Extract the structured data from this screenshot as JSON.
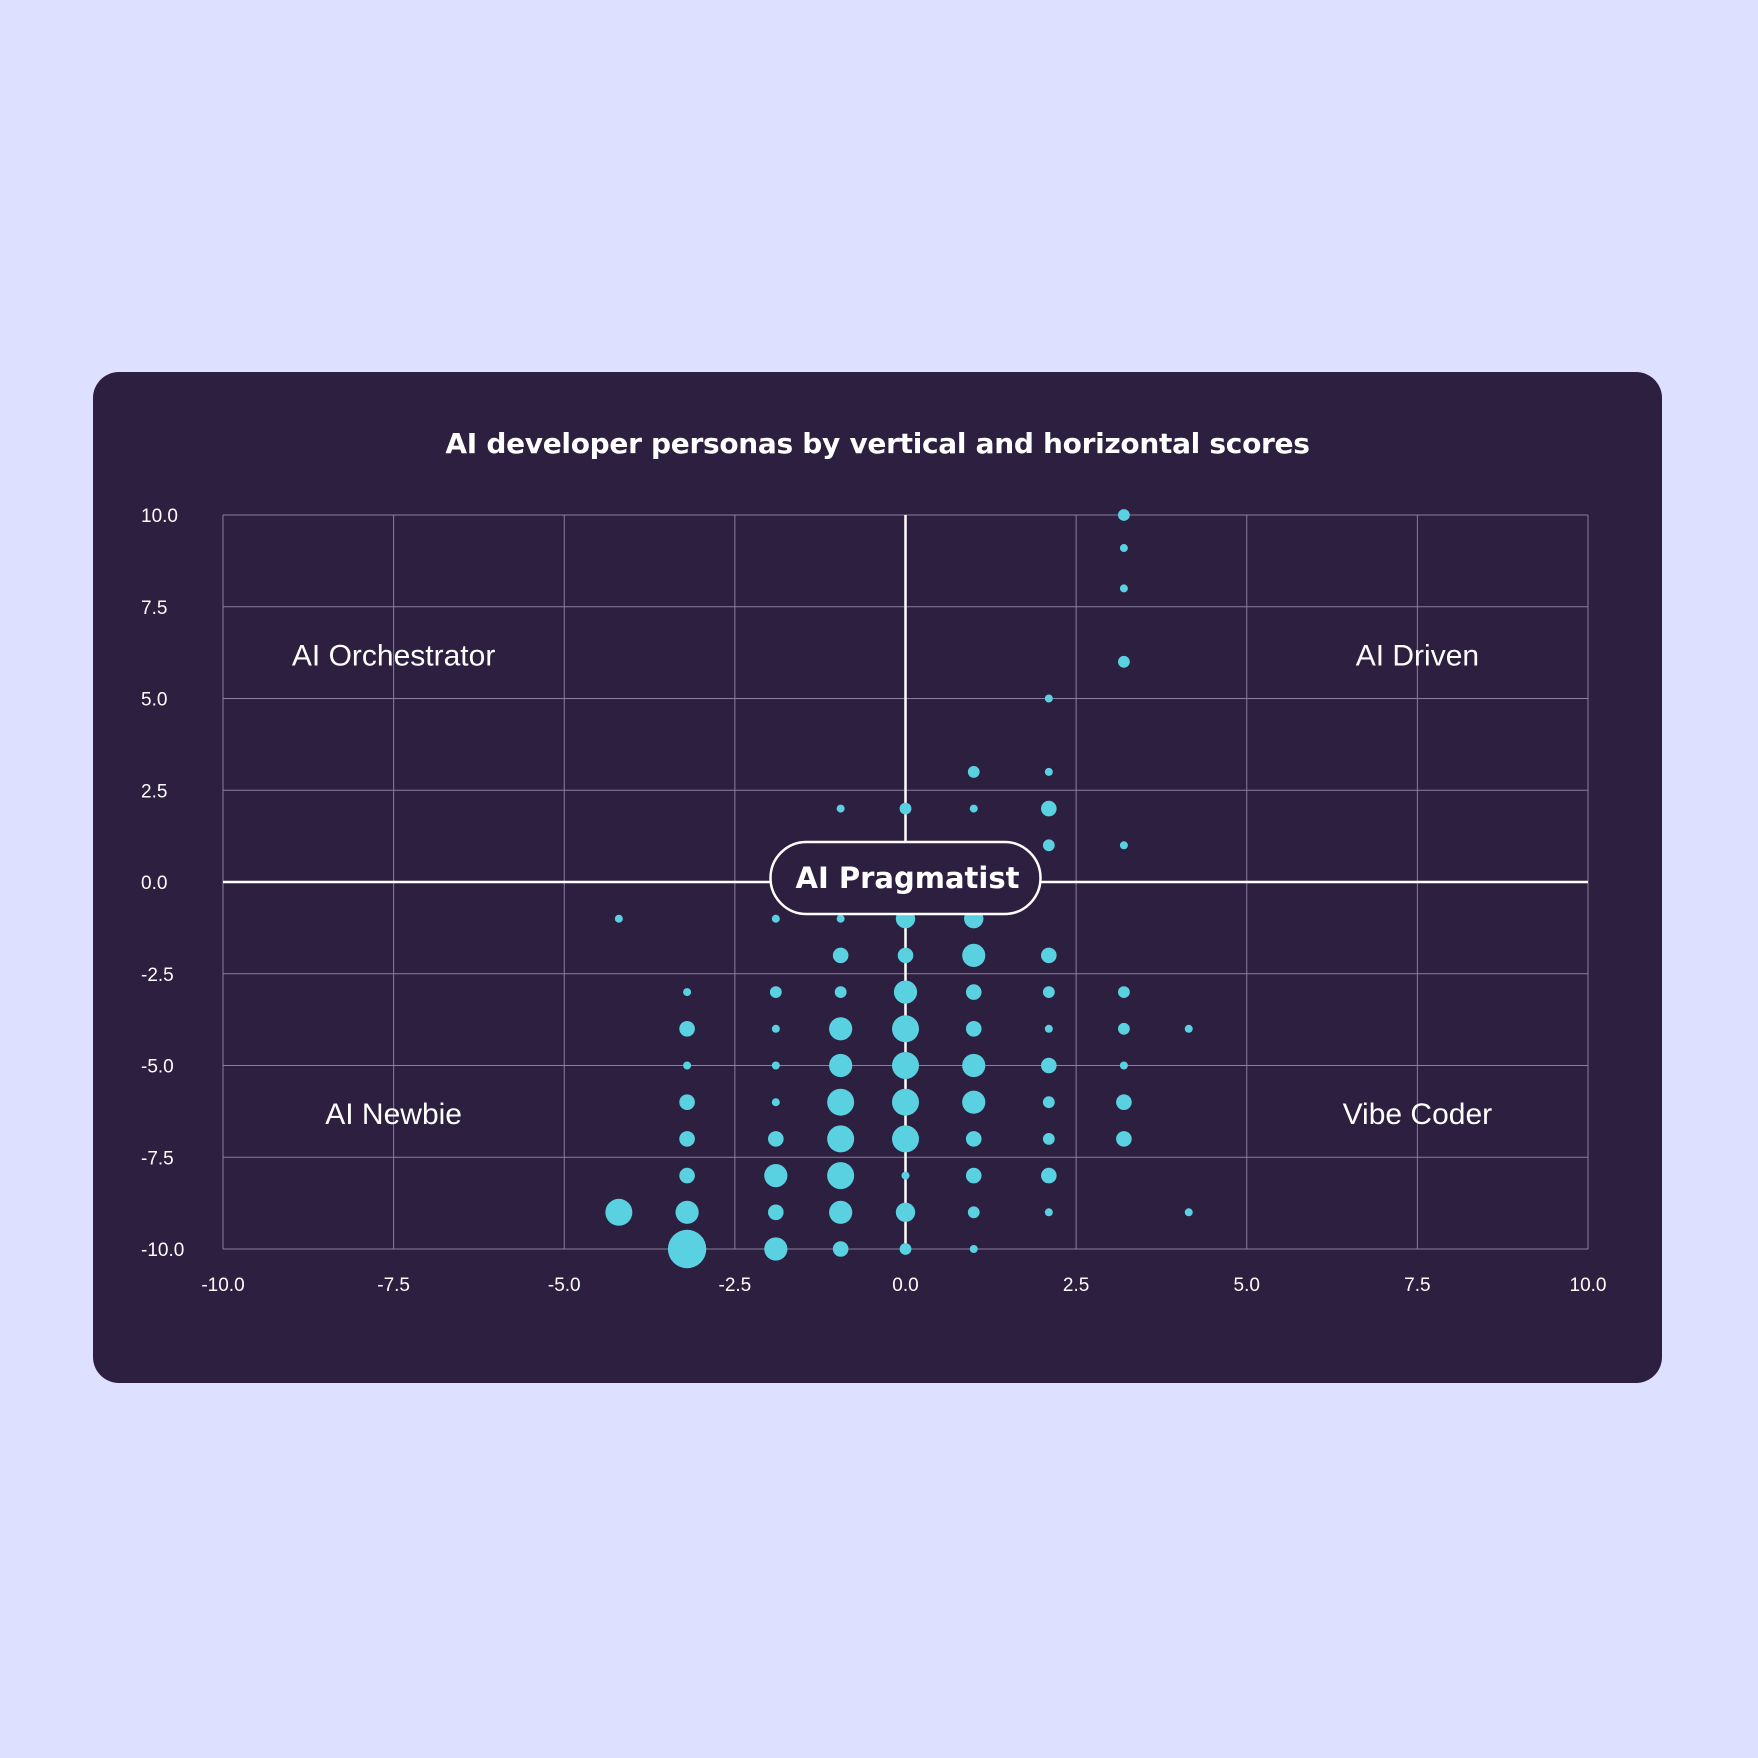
{
  "chart_data": {
    "type": "scatter",
    "title": "AI developer personas by vertical and horizontal scores",
    "xlabel": "",
    "ylabel": "",
    "xlim": [
      -10,
      10
    ],
    "ylim": [
      -10,
      10
    ],
    "x_ticks": [
      "-10.0",
      "-7.5",
      "-5.0",
      "-2.5",
      "0.0",
      "2.5",
      "5.0",
      "7.5",
      "10.0"
    ],
    "y_ticks": [
      "10.0",
      "7.5",
      "5.0",
      "2.5",
      "0.0",
      "-2.5",
      "-5.0",
      "-7.5",
      "-10.0"
    ],
    "grid": true,
    "quadrant_labels": {
      "top_left": "AI Orchestrator",
      "top_right": "AI Driven",
      "bottom_left": "AI Newbie",
      "bottom_right": "Vibe Coder",
      "center": "AI Pragmatist"
    },
    "colors": {
      "point": "#5ad1e0",
      "grid": "#8a7fa0",
      "axis": "#ffffff",
      "background": "#2c1f3f",
      "page": "#dee0ff"
    },
    "points": [
      {
        "x": 3.2,
        "y": 10.0,
        "size": 2
      },
      {
        "x": 3.2,
        "y": 9.1,
        "size": 1
      },
      {
        "x": 3.2,
        "y": 8.0,
        "size": 1
      },
      {
        "x": 3.2,
        "y": 6.0,
        "size": 2
      },
      {
        "x": 2.1,
        "y": 5.0,
        "size": 1
      },
      {
        "x": 1.0,
        "y": 3.0,
        "size": 2
      },
      {
        "x": 2.1,
        "y": 3.0,
        "size": 1
      },
      {
        "x": -0.95,
        "y": 2.0,
        "size": 1
      },
      {
        "x": 0.0,
        "y": 2.0,
        "size": 2
      },
      {
        "x": 1.0,
        "y": 2.0,
        "size": 1
      },
      {
        "x": 2.1,
        "y": 2.0,
        "size": 3
      },
      {
        "x": 2.1,
        "y": 1.0,
        "size": 2
      },
      {
        "x": 3.2,
        "y": 1.0,
        "size": 1
      },
      {
        "x": -4.2,
        "y": -1.0,
        "size": 1
      },
      {
        "x": -1.9,
        "y": -1.0,
        "size": 1
      },
      {
        "x": -0.95,
        "y": -1.0,
        "size": 1
      },
      {
        "x": 0.0,
        "y": -1.0,
        "size": 4
      },
      {
        "x": 1.0,
        "y": -1.0,
        "size": 4
      },
      {
        "x": -0.95,
        "y": -2.0,
        "size": 3
      },
      {
        "x": 0.0,
        "y": -2.0,
        "size": 3
      },
      {
        "x": 1.0,
        "y": -2.0,
        "size": 5
      },
      {
        "x": 2.1,
        "y": -2.0,
        "size": 3
      },
      {
        "x": -3.2,
        "y": -3.0,
        "size": 1
      },
      {
        "x": -1.9,
        "y": -3.0,
        "size": 2
      },
      {
        "x": -0.95,
        "y": -3.0,
        "size": 2
      },
      {
        "x": 0.0,
        "y": -3.0,
        "size": 5
      },
      {
        "x": 1.0,
        "y": -3.0,
        "size": 3
      },
      {
        "x": 2.1,
        "y": -3.0,
        "size": 2
      },
      {
        "x": 3.2,
        "y": -3.0,
        "size": 2
      },
      {
        "x": -3.2,
        "y": -4.0,
        "size": 3
      },
      {
        "x": -1.9,
        "y": -4.0,
        "size": 1
      },
      {
        "x": -0.95,
        "y": -4.0,
        "size": 5
      },
      {
        "x": 0.0,
        "y": -4.0,
        "size": 6
      },
      {
        "x": 1.0,
        "y": -4.0,
        "size": 3
      },
      {
        "x": 2.1,
        "y": -4.0,
        "size": 1
      },
      {
        "x": 3.2,
        "y": -4.0,
        "size": 2
      },
      {
        "x": 4.15,
        "y": -4.0,
        "size": 1
      },
      {
        "x": -3.2,
        "y": -5.0,
        "size": 1
      },
      {
        "x": -1.9,
        "y": -5.0,
        "size": 1
      },
      {
        "x": -0.95,
        "y": -5.0,
        "size": 5
      },
      {
        "x": 0.0,
        "y": -5.0,
        "size": 6
      },
      {
        "x": 1.0,
        "y": -5.0,
        "size": 5
      },
      {
        "x": 2.1,
        "y": -5.0,
        "size": 3
      },
      {
        "x": 3.2,
        "y": -5.0,
        "size": 1
      },
      {
        "x": -3.2,
        "y": -6.0,
        "size": 3
      },
      {
        "x": -1.9,
        "y": -6.0,
        "size": 1
      },
      {
        "x": -0.95,
        "y": -6.0,
        "size": 6
      },
      {
        "x": 0.0,
        "y": -6.0,
        "size": 6
      },
      {
        "x": 1.0,
        "y": -6.0,
        "size": 5
      },
      {
        "x": 2.1,
        "y": -6.0,
        "size": 2
      },
      {
        "x": 3.2,
        "y": -6.0,
        "size": 3
      },
      {
        "x": -3.2,
        "y": -7.0,
        "size": 3
      },
      {
        "x": -1.9,
        "y": -7.0,
        "size": 3
      },
      {
        "x": -0.95,
        "y": -7.0,
        "size": 6
      },
      {
        "x": 0.0,
        "y": -7.0,
        "size": 6
      },
      {
        "x": 1.0,
        "y": -7.0,
        "size": 3
      },
      {
        "x": 2.1,
        "y": -7.0,
        "size": 2
      },
      {
        "x": 3.2,
        "y": -7.0,
        "size": 3
      },
      {
        "x": -3.2,
        "y": -8.0,
        "size": 3
      },
      {
        "x": -1.9,
        "y": -8.0,
        "size": 5
      },
      {
        "x": -0.95,
        "y": -8.0,
        "size": 6
      },
      {
        "x": 0.0,
        "y": -8.0,
        "size": 1
      },
      {
        "x": 1.0,
        "y": -8.0,
        "size": 3
      },
      {
        "x": 2.1,
        "y": -8.0,
        "size": 3
      },
      {
        "x": -4.2,
        "y": -9.0,
        "size": 6
      },
      {
        "x": -3.2,
        "y": -9.0,
        "size": 5
      },
      {
        "x": -1.9,
        "y": -9.0,
        "size": 3
      },
      {
        "x": -0.95,
        "y": -9.0,
        "size": 5
      },
      {
        "x": 0.0,
        "y": -9.0,
        "size": 4
      },
      {
        "x": 1.0,
        "y": -9.0,
        "size": 2
      },
      {
        "x": 2.1,
        "y": -9.0,
        "size": 1
      },
      {
        "x": 4.15,
        "y": -9.0,
        "size": 1
      },
      {
        "x": -3.2,
        "y": -10.0,
        "size": 9
      },
      {
        "x": -1.9,
        "y": -10.0,
        "size": 5
      },
      {
        "x": -0.95,
        "y": -10.0,
        "size": 3
      },
      {
        "x": 0.0,
        "y": -10.0,
        "size": 2
      },
      {
        "x": 1.0,
        "y": -10.0,
        "size": 1
      }
    ]
  }
}
